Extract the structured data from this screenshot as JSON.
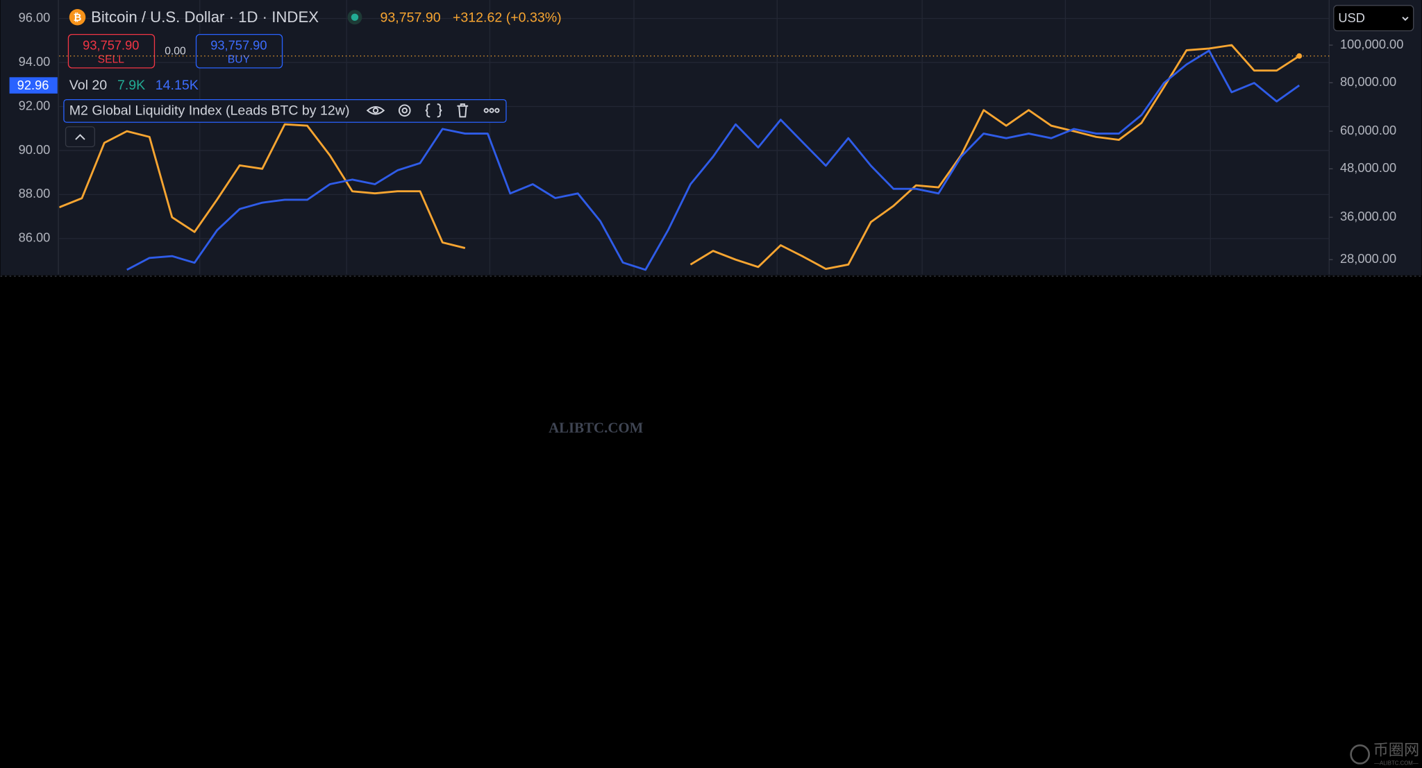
{
  "chart_data": {
    "type": "line",
    "title": "Bitcoin / U.S. Dollar · 1D · INDEX",
    "series": [
      {
        "color": "#f7a531",
        "axis": "y2",
        "values": [
          38200,
          40300,
          56000,
          60000,
          58000,
          36000,
          33000,
          40000,
          49000,
          48000,
          62500,
          62000,
          52000,
          42000,
          41500,
          42000,
          42000,
          31000,
          30000,
          null,
          null,
          null,
          null,
          null,
          null,
          null,
          null,
          null,
          27200,
          29500,
          28000,
          26800,
          30500,
          28500,
          26500,
          27200,
          35000,
          38500,
          43500,
          43000,
          52000,
          68000,
          62000,
          68000,
          62000,
          60000,
          58000,
          57000,
          63000,
          78000,
          97000,
          98000,
          100000,
          86000,
          86000,
          93757.9
        ]
      },
      {
        "name": "M2 Global Liquidity Index (Leads BTC by 12w)",
        "color": "#2f5ce8",
        "values": [
          null,
          null,
          null,
          84.58,
          85.12,
          85.2,
          84.9,
          86.38,
          87.34,
          87.63,
          87.76,
          87.76,
          88.47,
          88.68,
          88.47,
          89.1,
          89.43,
          90.98,
          90.77,
          90.77,
          88.05,
          88.47,
          87.84,
          88.05,
          86.79,
          84.91,
          84.58,
          86.38,
          88.47,
          89.72,
          91.19,
          90.14,
          91.4,
          90.35,
          89.31,
          90.56,
          89.31,
          88.26,
          88.26,
          88.05,
          89.72,
          90.77,
          90.56,
          90.77,
          90.56,
          90.98,
          90.77,
          90.77,
          91.61,
          93.07,
          93.91,
          94.54,
          92.65,
          93.07,
          92.23,
          92.96
        ]
      }
    ],
    "ylim": [
      84.37,
      96.84
    ],
    "yticks": [
      {
        "value": 86,
        "label": "86.00"
      },
      {
        "value": 88,
        "label": "88.00"
      },
      {
        "value": 90,
        "label": "90.00"
      },
      {
        "value": 92,
        "label": "92.00"
      },
      {
        "value": 94,
        "label": "94.00"
      },
      {
        "value": 96,
        "label": "96.00"
      }
    ],
    "y2lim": [
      25650,
      130700
    ],
    "y2log": true,
    "y2ticks": [
      {
        "value": 28000,
        "label": "28,000.00"
      },
      {
        "value": 36000,
        "label": "36,000.00"
      },
      {
        "value": 48000,
        "label": "48,000.00"
      },
      {
        "value": 60000,
        "label": "60,000.00"
      },
      {
        "value": 80000,
        "label": "80,000.00"
      },
      {
        "value": 100000,
        "label": "100,000.00"
      }
    ],
    "grid": true
  },
  "header": {
    "price": "93,757.90",
    "change": "+312.62 (+0.33%)",
    "sell_price": "93,757.90",
    "sell": "SELL",
    "spread": "0.00",
    "buy_price": "93,757.90",
    "buy": "BUY",
    "vol_label": "Vol 20",
    "vol_1": "7.9K",
    "vol_2": "14.15K",
    "currency": "USD"
  },
  "watermark": "ALIBTC.COM",
  "logo": {
    "name": "币圈网",
    "site": "—ALIBTC.COM—"
  }
}
